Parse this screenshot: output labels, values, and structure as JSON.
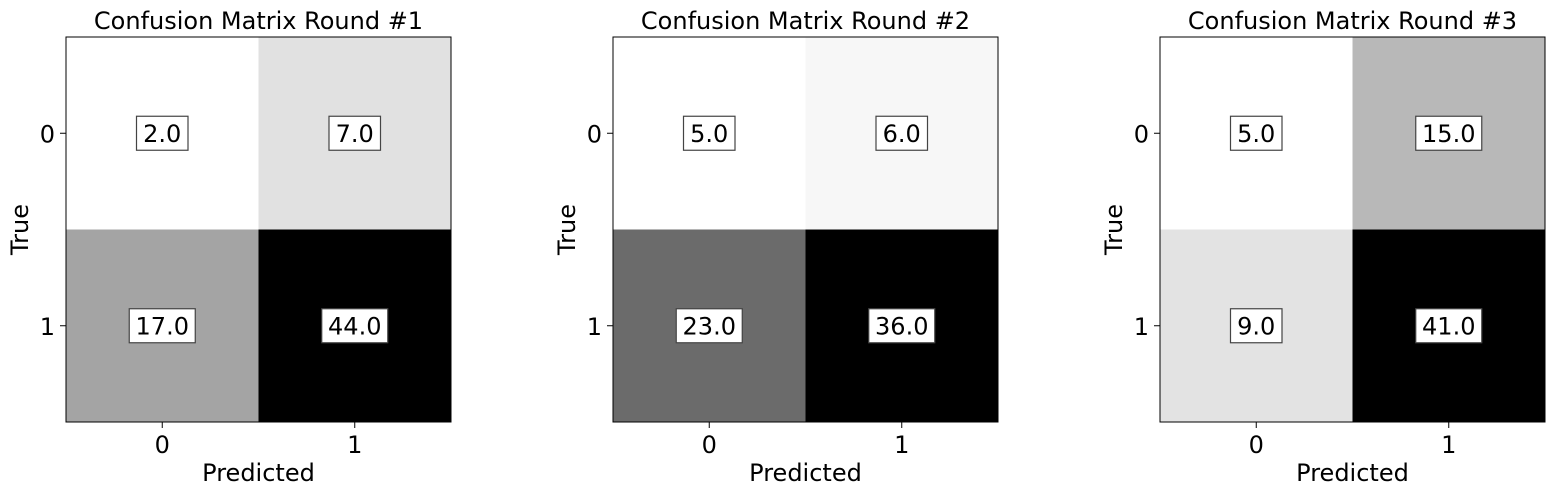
{
  "chart_data": [
    {
      "type": "heatmap",
      "title": "Confusion Matrix Round #1",
      "xlabel": "Predicted",
      "ylabel": "True",
      "x_categories": [
        "0",
        "1"
      ],
      "y_categories": [
        "0",
        "1"
      ],
      "values": [
        [
          2.0,
          7.0
        ],
        [
          17.0,
          44.0
        ]
      ],
      "value_labels": [
        [
          "2.0",
          "7.0"
        ],
        [
          "17.0",
          "44.0"
        ]
      ],
      "colormap": "Greys"
    },
    {
      "type": "heatmap",
      "title": "Confusion Matrix Round #2",
      "xlabel": "Predicted",
      "ylabel": "True",
      "x_categories": [
        "0",
        "1"
      ],
      "y_categories": [
        "0",
        "1"
      ],
      "values": [
        [
          5.0,
          6.0
        ],
        [
          23.0,
          36.0
        ]
      ],
      "value_labels": [
        [
          "5.0",
          "6.0"
        ],
        [
          "23.0",
          "36.0"
        ]
      ],
      "colormap": "Greys"
    },
    {
      "type": "heatmap",
      "title": "Confusion Matrix Round #3",
      "xlabel": "Predicted",
      "ylabel": "True",
      "x_categories": [
        "0",
        "1"
      ],
      "y_categories": [
        "0",
        "1"
      ],
      "values": [
        [
          5.0,
          15.0
        ],
        [
          9.0,
          41.0
        ]
      ],
      "value_labels": [
        [
          "5.0",
          "15.0"
        ],
        [
          "9.0",
          "41.0"
        ]
      ],
      "colormap": "Greys"
    }
  ]
}
